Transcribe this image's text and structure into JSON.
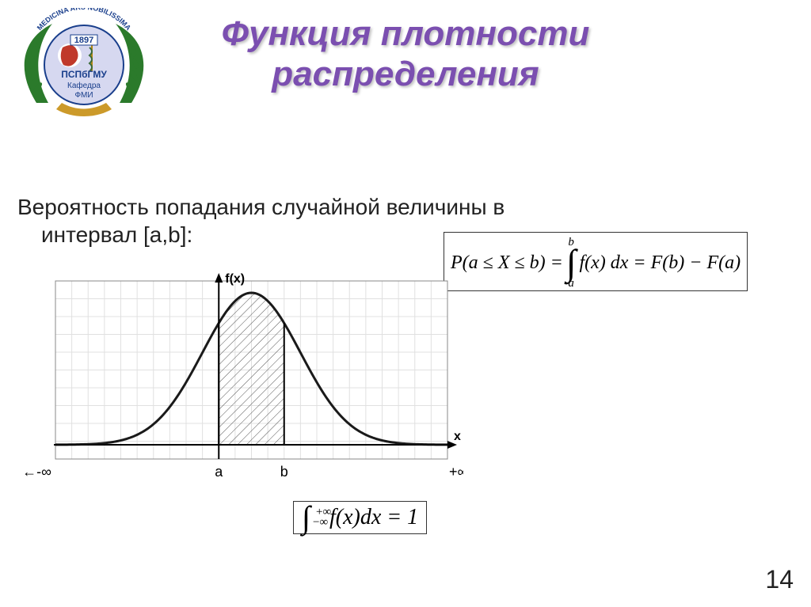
{
  "title_line1": "Функция плотности",
  "title_line2": "распределения",
  "body_line1": "Вероятность попадания случайной величины в",
  "body_line2": "интервал [a,b]:",
  "formula1": {
    "lhs": "P(a ≤ X ≤ b) = ",
    "int_top": "b",
    "int_bot": "a",
    "rhs": " f(x) dx = F(b) − F(a)"
  },
  "formula2": {
    "int_top": "+∞",
    "int_bot": "−∞",
    "body": " f(x)dx = 1"
  },
  "slide_number": "14",
  "logo": {
    "year": "1897",
    "line1": "ПСПбГМУ",
    "line2": "Кафедра",
    "line3": "ФМИ",
    "wreath_color": "#2b7a2b",
    "ribbon_color": "#cc9a2a",
    "arc_color": "#1a3f8c",
    "face_color": "#c0392b"
  },
  "chart": {
    "type": "pdf-curve",
    "x_range": [
      -6,
      6
    ],
    "x_a": -1.0,
    "x_b": 1.0,
    "mu": 0,
    "sigma": 1.5,
    "grid_color": "#e0e0e0",
    "curve_color": "#1a1a1a",
    "curve_width": 3,
    "hatch_color": "#555555",
    "background": "#ffffff",
    "axis_label_y": "f(x)",
    "axis_label_x": "x",
    "left_inf": "←-∞",
    "right_inf": "+∞→",
    "tick_a": "a",
    "tick_b": "b",
    "label_font": 16
  }
}
